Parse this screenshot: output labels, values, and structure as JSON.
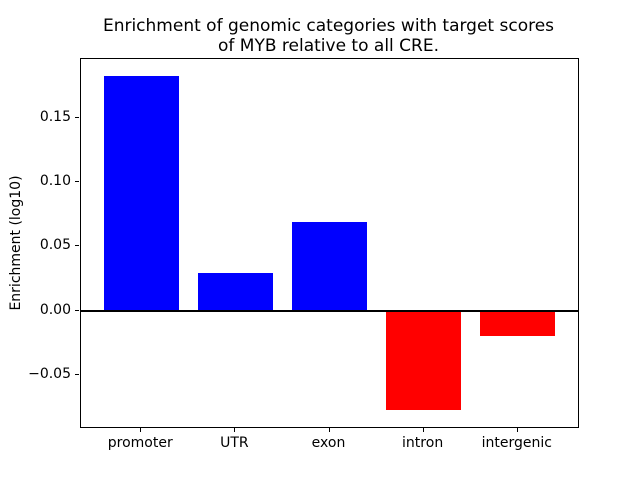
{
  "chart_data": {
    "type": "bar",
    "title_lines": [
      "Enrichment of genomic categories with target scores",
      "of MYB relative to all CRE."
    ],
    "ylabel": "Enrichment (log10)",
    "xlabel": "",
    "categories": [
      "promoter",
      "UTR",
      "exon",
      "intron",
      "intergenic"
    ],
    "values": [
      0.1825,
      0.0295,
      0.069,
      -0.0775,
      -0.02
    ],
    "bar_colors": [
      "#0000ff",
      "#0000ff",
      "#0000ff",
      "#ff0000",
      "#ff0000"
    ],
    "positive_color": "#0000ff",
    "negative_color": "#ff0000",
    "ylim": [
      -0.0905,
      0.1955
    ],
    "yticks": [
      {
        "value": 0.15,
        "label": "0.15"
      },
      {
        "value": 0.1,
        "label": "0.10"
      },
      {
        "value": 0.05,
        "label": "0.05"
      },
      {
        "value": 0.0,
        "label": "0.00"
      },
      {
        "value": -0.05,
        "label": "−0.05"
      }
    ],
    "zero_line": true,
    "grid": false,
    "legend": null,
    "bar_width_fraction": 0.8,
    "x_margin_units": 0.64
  }
}
